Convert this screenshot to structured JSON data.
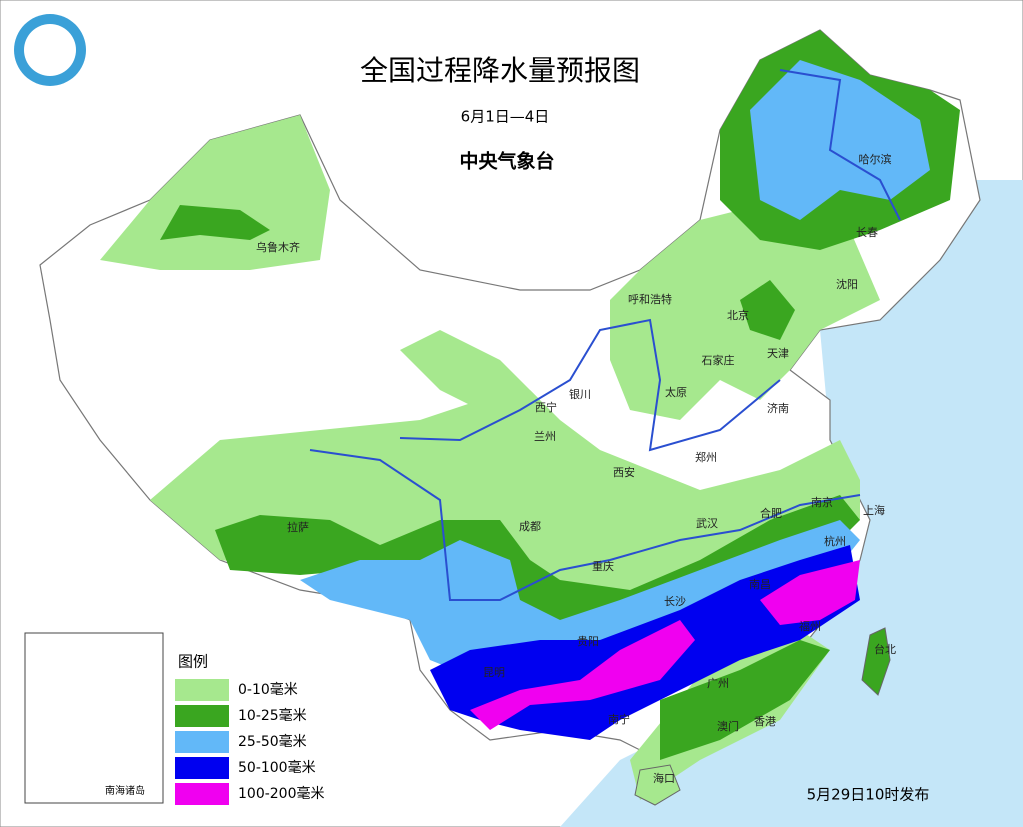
{
  "header": {
    "title": "全国过程降水量预报图",
    "period": "6月1日—4日",
    "agency": "中央气象台"
  },
  "legend": {
    "title": "图例",
    "items": [
      {
        "label": "0-10毫米",
        "color": "#a6e88e"
      },
      {
        "label": "10-25毫米",
        "color": "#3aa620"
      },
      {
        "label": "25-50毫米",
        "color": "#62b8f8"
      },
      {
        "label": "50-100毫米",
        "color": "#0000f0"
      },
      {
        "label": "100-200毫米",
        "color": "#f000f0"
      }
    ]
  },
  "cities": [
    "乌鲁木齐",
    "哈尔滨",
    "长春",
    "沈阳",
    "呼和浩特",
    "北京",
    "天津",
    "石家庄",
    "太原",
    "济南",
    "西宁",
    "银川",
    "兰州",
    "郑州",
    "西安",
    "南京",
    "合肥",
    "上海",
    "武汉",
    "拉萨",
    "成都",
    "重庆",
    "杭州",
    "长沙",
    "南昌",
    "福州",
    "贵阳",
    "台北",
    "昆明",
    "广州",
    "南宁",
    "澳门",
    "香港",
    "海口"
  ],
  "inset": {
    "label": "南海诸岛"
  },
  "footer": {
    "release": "5月29日10时发布"
  }
}
